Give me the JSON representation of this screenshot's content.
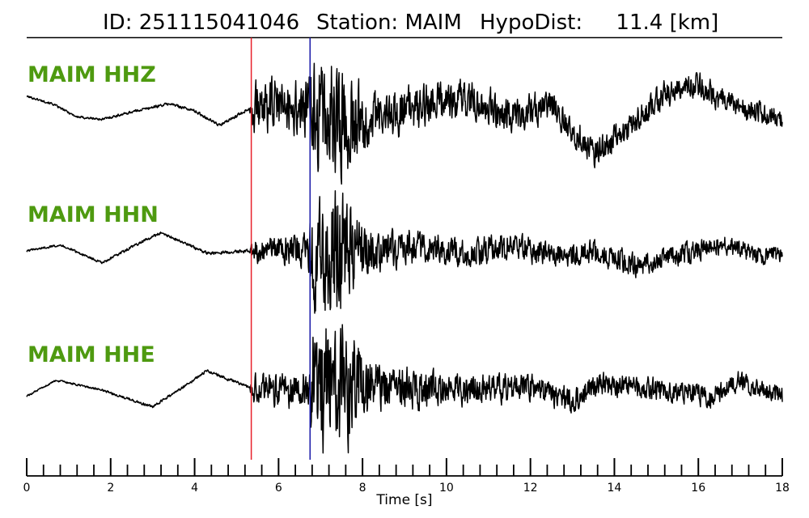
{
  "title": {
    "id_text": "ID: 251115041046",
    "station_text": "Station: MAIM",
    "hypodist_text": "HypoDist:     11.4 [km]"
  },
  "colors": {
    "label": "#4e9a10",
    "p_pick": "#e8202a",
    "s_pick": "#1a1aa8",
    "trace": "#000000"
  },
  "chart_data": {
    "type": "line",
    "xlabel": "Time [s]",
    "xlim": [
      0,
      18
    ],
    "major_ticks": [
      0,
      2,
      4,
      6,
      8,
      10,
      12,
      14,
      16,
      18
    ],
    "minor_tick_step": 0.4,
    "picks": [
      {
        "phase": "P",
        "time": 5.35,
        "color": "#e8202a"
      },
      {
        "phase": "S",
        "time": 6.75,
        "color": "#1a1aa8"
      }
    ],
    "series": [
      {
        "name": "MAIM HHZ",
        "lowfreq": [
          [
            0,
            0.12
          ],
          [
            0.6,
            0.06
          ],
          [
            1.2,
            -0.05
          ],
          [
            1.8,
            -0.07
          ],
          [
            2.6,
            0.0
          ],
          [
            3.4,
            0.06
          ],
          [
            4.0,
            0.0
          ],
          [
            4.6,
            -0.12
          ],
          [
            5.3,
            0.02
          ],
          [
            6.0,
            0.05
          ],
          [
            6.7,
            0.0
          ],
          [
            7.5,
            -0.1
          ],
          [
            8.5,
            -0.05
          ],
          [
            9.5,
            0.05
          ],
          [
            10.5,
            0.1
          ],
          [
            11.0,
            0.05
          ],
          [
            11.5,
            -0.05
          ],
          [
            12.5,
            0.05
          ],
          [
            13.5,
            -0.35
          ],
          [
            14.5,
            -0.1
          ],
          [
            15.2,
            0.15
          ],
          [
            16.0,
            0.22
          ],
          [
            16.5,
            0.1
          ],
          [
            17.3,
            0.0
          ],
          [
            18,
            -0.05
          ]
        ],
        "noise": [
          [
            0,
            0.005
          ],
          [
            5.3,
            0.008
          ],
          [
            5.4,
            0.12
          ],
          [
            6.7,
            0.14
          ],
          [
            6.8,
            0.28
          ],
          [
            7.5,
            0.28
          ],
          [
            8.2,
            0.12
          ],
          [
            10,
            0.1
          ],
          [
            13,
            0.07
          ],
          [
            16.5,
            0.06
          ],
          [
            18,
            0.05
          ]
        ]
      },
      {
        "name": "MAIM HHN",
        "lowfreq": [
          [
            0,
            0.0
          ],
          [
            0.8,
            0.05
          ],
          [
            1.8,
            -0.1
          ],
          [
            2.6,
            0.05
          ],
          [
            3.2,
            0.15
          ],
          [
            4.3,
            -0.02
          ],
          [
            5.3,
            0.0
          ],
          [
            6.0,
            0.02
          ],
          [
            6.7,
            0.0
          ],
          [
            8.0,
            -0.03
          ],
          [
            9.5,
            0.05
          ],
          [
            10.5,
            -0.02
          ],
          [
            11.5,
            0.05
          ],
          [
            12.5,
            -0.05
          ],
          [
            13.5,
            0.0
          ],
          [
            14.5,
            -0.12
          ],
          [
            15.5,
            -0.04
          ],
          [
            16.5,
            0.05
          ],
          [
            17.5,
            -0.03
          ],
          [
            18,
            0.0
          ]
        ],
        "noise": [
          [
            0,
            0.005
          ],
          [
            5.3,
            0.008
          ],
          [
            5.4,
            0.06
          ],
          [
            6.7,
            0.08
          ],
          [
            6.8,
            0.3
          ],
          [
            7.5,
            0.3
          ],
          [
            8.2,
            0.1
          ],
          [
            10,
            0.07
          ],
          [
            13,
            0.06
          ],
          [
            18,
            0.05
          ]
        ]
      },
      {
        "name": "MAIM HHE",
        "lowfreq": [
          [
            0,
            -0.05
          ],
          [
            0.7,
            0.08
          ],
          [
            1.8,
            0.0
          ],
          [
            3.0,
            -0.14
          ],
          [
            4.3,
            0.16
          ],
          [
            5.3,
            0.02
          ],
          [
            6.0,
            0.0
          ],
          [
            6.7,
            0.0
          ],
          [
            8.0,
            0.05
          ],
          [
            9.5,
            0.0
          ],
          [
            10.5,
            0.0
          ],
          [
            12.0,
            0.02
          ],
          [
            13.0,
            -0.08
          ],
          [
            13.7,
            0.05
          ],
          [
            14.5,
            0.02
          ],
          [
            15.5,
            0.0
          ],
          [
            16.3,
            -0.06
          ],
          [
            17.0,
            0.07
          ],
          [
            18,
            -0.05
          ]
        ],
        "noise": [
          [
            0,
            0.004
          ],
          [
            5.3,
            0.008
          ],
          [
            5.4,
            0.07
          ],
          [
            6.7,
            0.09
          ],
          [
            6.8,
            0.32
          ],
          [
            7.6,
            0.32
          ],
          [
            8.3,
            0.12
          ],
          [
            10,
            0.08
          ],
          [
            13,
            0.06
          ],
          [
            18,
            0.05
          ]
        ]
      }
    ]
  }
}
